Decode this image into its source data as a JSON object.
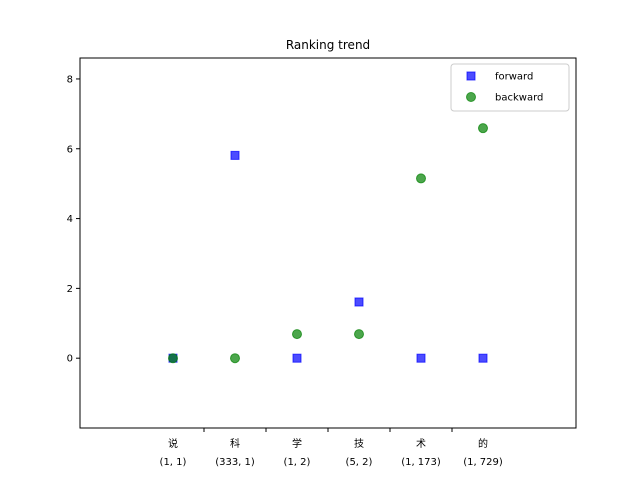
{
  "chart_data": {
    "type": "scatter",
    "title": "Ranking trend",
    "xlabel": "",
    "ylabel": "",
    "ylim": [
      -2,
      8.6
    ],
    "y_ticks": [
      0,
      2,
      4,
      6,
      8
    ],
    "categories": [
      {
        "char": "说",
        "pair": "(1, 1)"
      },
      {
        "char": "科",
        "pair": "(333, 1)"
      },
      {
        "char": "学",
        "pair": "(1, 2)"
      },
      {
        "char": "技",
        "pair": "(5, 2)"
      },
      {
        "char": "术",
        "pair": "(1, 173)"
      },
      {
        "char": "的",
        "pair": "(1, 729)"
      }
    ],
    "series": [
      {
        "name": "forward",
        "marker": "square",
        "color": "#0000ff",
        "values": [
          0,
          5.81,
          0,
          1.61,
          0,
          0
        ]
      },
      {
        "name": "backward",
        "marker": "circle",
        "color": "#008000",
        "values": [
          0,
          0,
          0.69,
          0.69,
          5.15,
          6.59
        ]
      }
    ],
    "legend_position": "top-right",
    "grid": false
  }
}
